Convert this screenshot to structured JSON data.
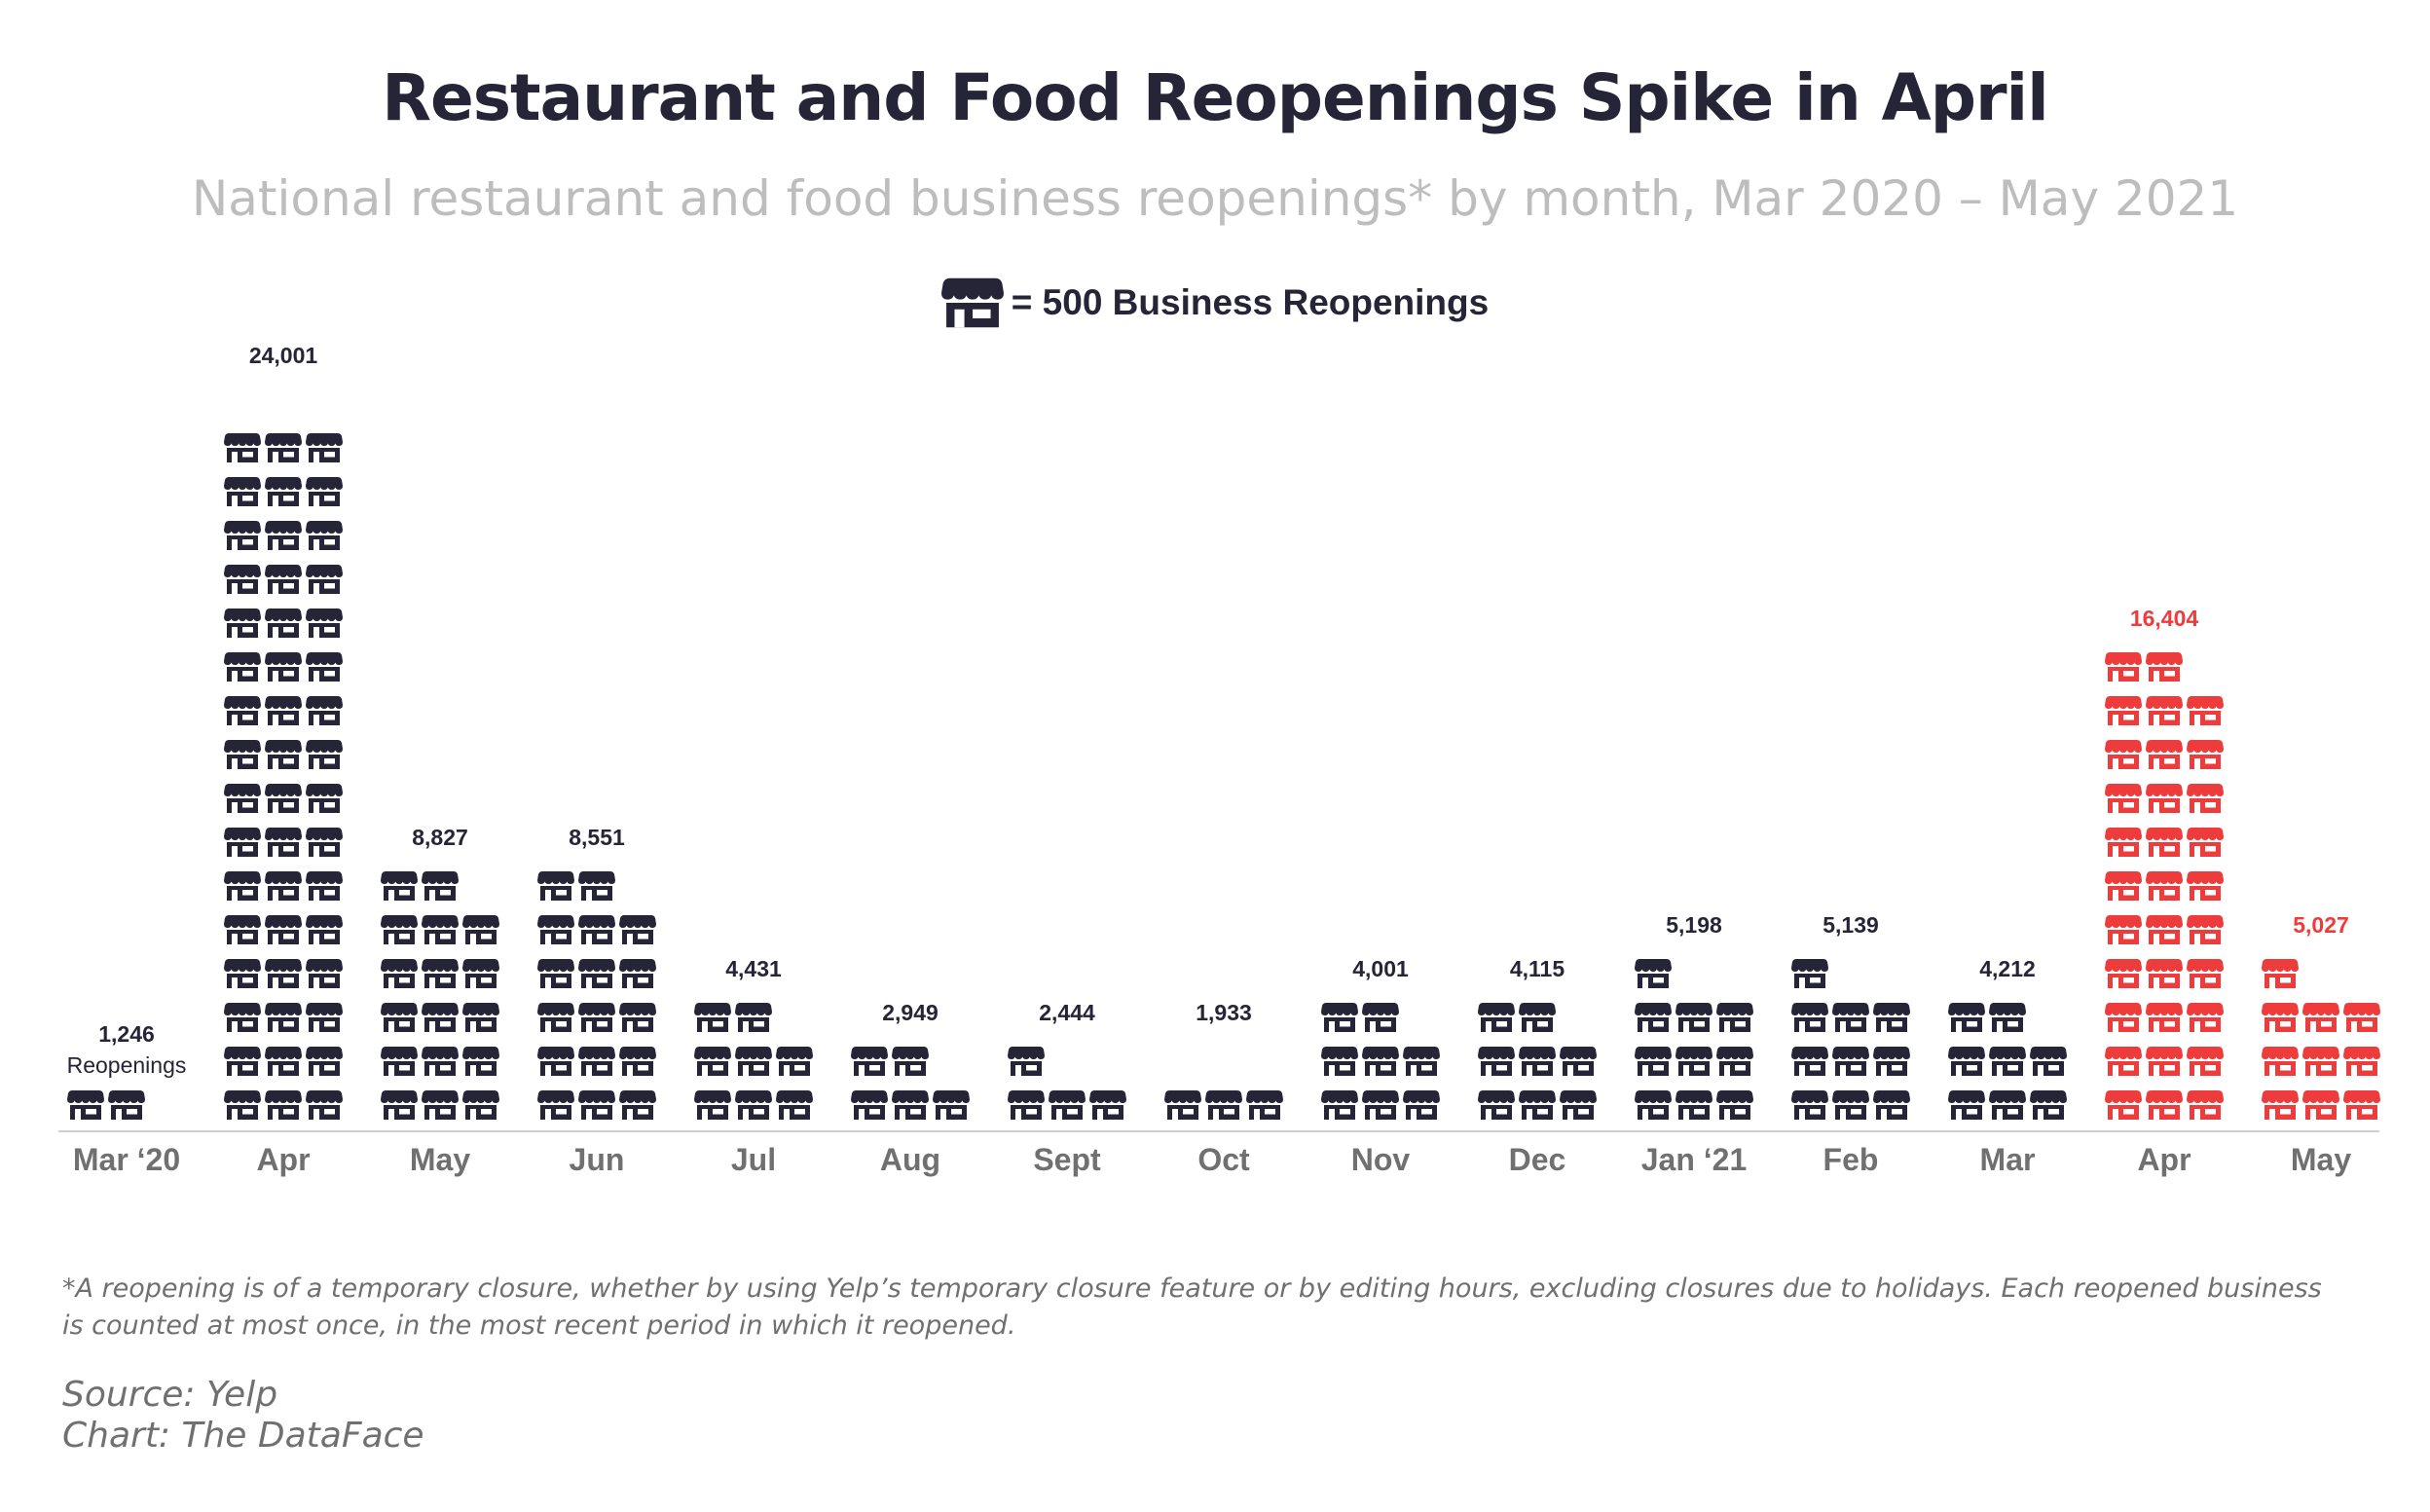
{
  "title": "Restaurant and Food Reopenings Spike in April",
  "subtitle": "National restaurant and food business reopenings* by month, Mar 2020 – May 2021",
  "key": {
    "icon": "storefront-icon",
    "label": "= 500 Business Reopenings"
  },
  "chart_data": {
    "type": "bar",
    "unit_per_icon": 500,
    "icon": "storefront-icon",
    "icons_per_row": 3,
    "categories": [
      "Mar ‘20",
      "Apr",
      "May",
      "Jun",
      "Jul",
      "Aug",
      "Sept",
      "Oct",
      "Nov",
      "Dec",
      "Jan ‘21",
      "Feb",
      "Mar",
      "Apr",
      "May"
    ],
    "values": [
      1246,
      24001,
      8827,
      8551,
      4431,
      2949,
      2444,
      1933,
      4001,
      4115,
      5198,
      5139,
      4212,
      16404,
      5027
    ],
    "value_labels": [
      "1,246",
      "24,001",
      "8,827",
      "8,551",
      "4,431",
      "2,949",
      "2,444",
      "1,933",
      "4,001",
      "4,115",
      "5,198",
      "5,139",
      "4,212",
      "16,404",
      "5,027"
    ],
    "first_label_suffix": "Reopenings",
    "highlight_indices": [
      13,
      14
    ],
    "colors": {
      "default": "#262538",
      "highlight": "#ee3b3b",
      "axis_text": "#707070",
      "axis_line": "#d0d0d0"
    }
  },
  "footnote": "*A reopening is of a temporary closure, whether by using Yelp’s temporary closure feature or by editing hours, excluding closures due to holidays. Each reopened business is counted at most once, in the most recent period in which it reopened.",
  "source": "Source: Yelp",
  "credit": "Chart: The DataFace"
}
